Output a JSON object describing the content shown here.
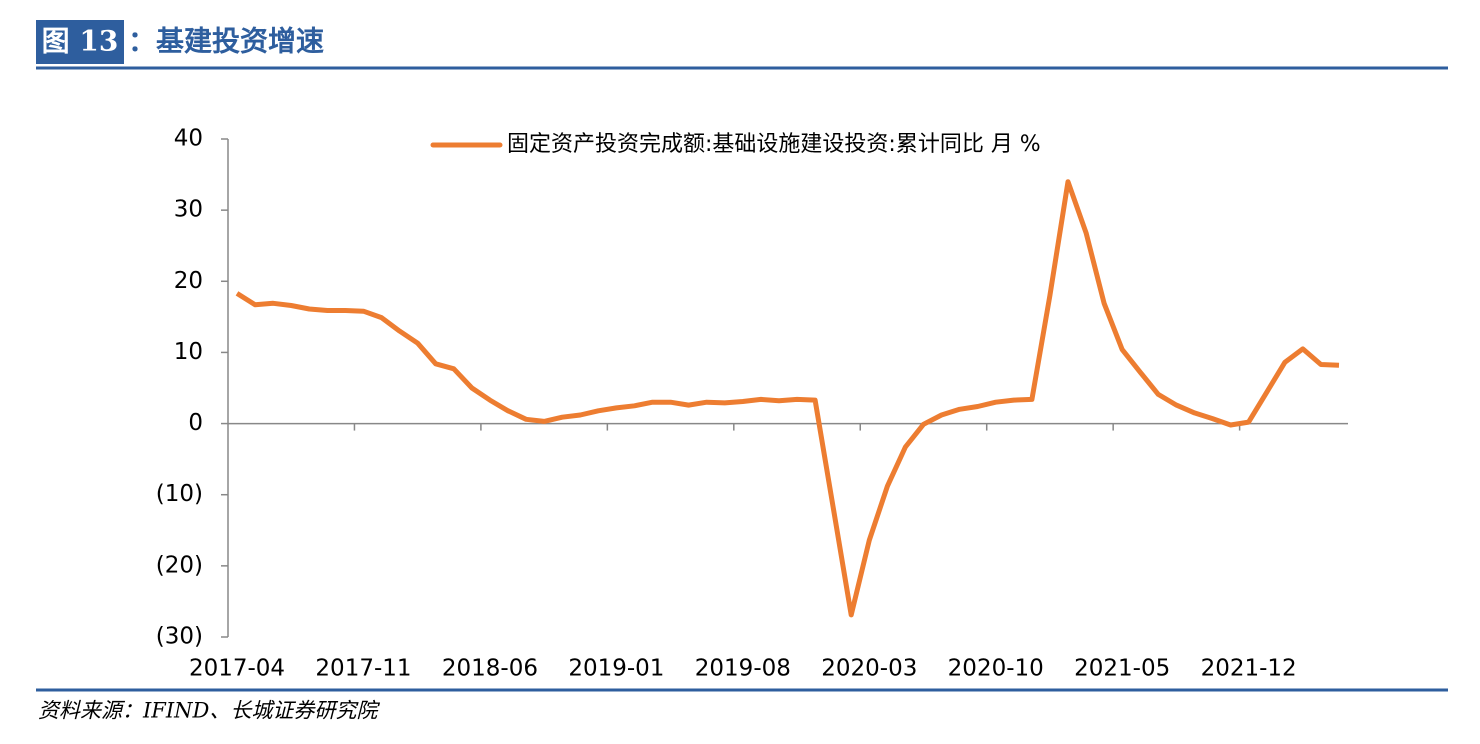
{
  "header": {
    "label": "图 13",
    "title": "：基建投资增速"
  },
  "source": "资料来源：IFIND、长城证券研究院",
  "chart_data": {
    "type": "line",
    "categories": [
      "2017-04",
      null,
      null,
      null,
      null,
      null,
      null,
      "2017-11",
      null,
      null,
      null,
      null,
      null,
      null,
      "2018-06",
      null,
      null,
      null,
      null,
      null,
      null,
      "2019-01",
      null,
      null,
      null,
      null,
      null,
      null,
      "2019-08",
      null,
      null,
      null,
      null,
      null,
      null,
      "2020-03",
      null,
      null,
      null,
      null,
      null,
      null,
      "2020-10",
      null,
      null,
      null,
      null,
      null,
      null,
      "2021-05",
      null,
      null,
      null,
      null,
      null,
      null,
      "2021-12",
      null,
      null,
      null,
      null,
      null
    ],
    "series": [
      {
        "name": "固定资产投资完成额:基础设施建设投资:累计同比 月 %",
        "color": "#ed7d31",
        "values": [
          18.3,
          16.7,
          16.9,
          16.6,
          16.1,
          15.9,
          15.9,
          15.8,
          14.9,
          13.0,
          11.3,
          8.4,
          7.7,
          5.0,
          3.3,
          1.8,
          0.6,
          0.3,
          0.9,
          1.2,
          1.8,
          2.2,
          2.5,
          3.0,
          3.0,
          2.6,
          3.0,
          2.9,
          3.1,
          3.4,
          3.2,
          3.4,
          3.3,
          -11.8,
          -26.9,
          -16.4,
          -8.8,
          -3.3,
          -0.1,
          1.2,
          2.0,
          2.4,
          3.0,
          3.3,
          3.4,
          18.0,
          34.0,
          26.8,
          16.9,
          10.4,
          7.2,
          4.1,
          2.6,
          1.5,
          0.7,
          -0.2,
          0.2,
          4.4,
          8.6,
          10.5,
          8.3,
          8.2
        ]
      }
    ],
    "ylim": [
      -30,
      40
    ],
    "yticks": [
      {
        "value": -30,
        "label": "(30)"
      },
      {
        "value": -20,
        "label": "(20)"
      },
      {
        "value": -10,
        "label": "(10)"
      },
      0,
      10,
      20,
      30,
      40
    ],
    "negative_tick_color": "#ff0000",
    "legend": "top"
  }
}
